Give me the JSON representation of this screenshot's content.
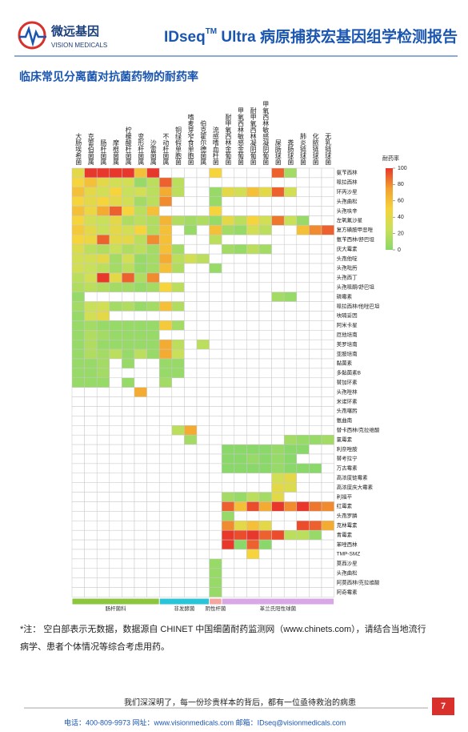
{
  "header": {
    "logo_cn": "微远基因",
    "logo_en": "VISION MEDICALS",
    "title_prefix": "IDseq",
    "title_sup": "TM",
    "title_rest": " Ultra 病原捕获宏基因组学检测报告"
  },
  "section_title": "临床常见分离菌对抗菌药物的耐药率",
  "chart_data": {
    "type": "heatmap",
    "columns": [
      "大肠埃希菌",
      "克雷伯菌属",
      "肠杆菌属",
      "摩根菌属",
      "柠檬酸杆菌属",
      "变形杆菌属",
      "沙雷菌属",
      "不动杆菌属",
      "铜绿假单胞菌",
      "嗜麦芽窄食单胞菌",
      "伯克霍尔德菌属",
      "流感嗜血杆菌",
      "耐甲氧西林金葡菌",
      "甲氧西林敏感金葡菌",
      "耐甲氧西林凝阴葡菌",
      "甲氧西林敏感凝阴葡菌",
      "屎肠球菌",
      "粪肠球菌",
      "肺炎链球菌",
      "化脓链球菌",
      "无乳链球菌"
    ],
    "rows": [
      "氨苄西林",
      "哌拉西林",
      "环丙沙星",
      "头孢曲松",
      "头孢呋辛",
      "左氧氟沙星",
      "复方磺胺甲恶唑",
      "氨苄西林/舒巴坦",
      "庆大霉素",
      "头孢他啶",
      "头孢吡肟",
      "头孢西丁",
      "头孢哌酮/舒巴坦",
      "磷霉素",
      "哌拉西林/他唑巴坦",
      "呋喃妥因",
      "阿米卡星",
      "厄他培南",
      "美罗培南",
      "亚胺培南",
      "黏菌素",
      "多黏菌素B",
      "替加环素",
      "头孢唑林",
      "米诺环素",
      "头孢噻肟",
      "氨曲南",
      "替卡西林/克拉维酸",
      "氯霉素",
      "利奈唑胺",
      "替考拉宁",
      "万古霉素",
      "高浓度链霉素",
      "高浓度庆大霉素",
      "利福平",
      "红霉素",
      "头孢罗膦",
      "克林霉素",
      "青霉素",
      "苯唑西林",
      "TMP-SMZ",
      "莫西沙星",
      "头孢曲松",
      "阿莫西林/克拉维酸",
      "阿奇霉素"
    ],
    "values": [
      [
        40,
        100,
        100,
        100,
        100,
        60,
        100,
        null,
        null,
        null,
        null,
        50,
        null,
        null,
        null,
        null,
        90,
        10,
        null,
        null,
        null
      ],
      [
        50,
        60,
        40,
        30,
        30,
        5,
        20,
        90,
        20,
        null,
        null,
        null,
        null,
        null,
        null,
        null,
        null,
        null,
        null,
        null,
        null
      ],
      [
        60,
        40,
        30,
        50,
        25,
        30,
        20,
        70,
        20,
        null,
        null,
        5,
        40,
        30,
        60,
        40,
        90,
        30,
        null,
        null,
        null
      ],
      [
        50,
        40,
        50,
        40,
        30,
        10,
        20,
        80,
        null,
        null,
        null,
        5,
        null,
        null,
        null,
        null,
        null,
        null,
        null,
        null,
        null
      ],
      [
        60,
        45,
        70,
        90,
        50,
        20,
        60,
        null,
        null,
        null,
        null,
        50,
        null,
        null,
        null,
        null,
        null,
        null,
        null,
        null,
        null
      ],
      [
        50,
        30,
        25,
        40,
        15,
        20,
        15,
        65,
        15,
        10,
        15,
        5,
        40,
        20,
        50,
        30,
        85,
        25,
        5,
        null,
        null
      ],
      [
        55,
        40,
        25,
        40,
        30,
        50,
        15,
        60,
        null,
        5,
        null,
        60,
        10,
        5,
        30,
        20,
        null,
        null,
        60,
        80,
        90
      ],
      [
        50,
        45,
        90,
        40,
        40,
        20,
        80,
        60,
        null,
        null,
        null,
        20,
        null,
        null,
        null,
        null,
        null,
        null,
        null,
        null,
        null
      ],
      [
        35,
        20,
        15,
        25,
        15,
        20,
        10,
        60,
        10,
        null,
        null,
        null,
        10,
        5,
        20,
        10,
        null,
        null,
        null,
        null,
        null
      ],
      [
        30,
        30,
        40,
        10,
        30,
        5,
        10,
        70,
        20,
        30,
        20,
        null,
        null,
        null,
        null,
        null,
        null,
        null,
        null,
        null,
        null
      ],
      [
        30,
        25,
        20,
        10,
        20,
        5,
        10,
        60,
        15,
        null,
        null,
        5,
        null,
        null,
        null,
        null,
        null,
        null,
        null,
        null,
        null
      ],
      [
        20,
        30,
        100,
        40,
        90,
        15,
        80,
        null,
        null,
        null,
        null,
        null,
        null,
        null,
        null,
        null,
        null,
        null,
        null,
        null,
        null
      ],
      [
        15,
        20,
        15,
        10,
        10,
        5,
        10,
        50,
        20,
        null,
        null,
        null,
        null,
        null,
        null,
        null,
        null,
        null,
        null,
        null,
        null
      ],
      [
        5,
        null,
        null,
        null,
        null,
        null,
        null,
        null,
        null,
        null,
        null,
        null,
        null,
        null,
        null,
        null,
        10,
        5,
        null,
        null,
        null
      ],
      [
        10,
        25,
        30,
        10,
        15,
        5,
        10,
        60,
        15,
        null,
        null,
        null,
        null,
        null,
        null,
        null,
        null,
        null,
        null,
        null,
        null
      ],
      [
        5,
        30,
        40,
        null,
        null,
        null,
        null,
        null,
        null,
        null,
        null,
        null,
        null,
        null,
        null,
        null,
        null,
        null,
        null,
        null,
        null
      ],
      [
        5,
        10,
        5,
        5,
        5,
        5,
        5,
        55,
        10,
        null,
        null,
        null,
        null,
        null,
        null,
        null,
        null,
        null,
        null,
        null,
        null
      ],
      [
        5,
        15,
        10,
        5,
        5,
        5,
        5,
        null,
        null,
        null,
        null,
        null,
        null,
        null,
        null,
        null,
        null,
        null,
        null,
        null,
        null
      ],
      [
        5,
        15,
        5,
        5,
        5,
        5,
        5,
        70,
        20,
        null,
        20,
        null,
        null,
        null,
        null,
        null,
        null,
        null,
        null,
        null,
        null
      ],
      [
        5,
        15,
        10,
        20,
        5,
        20,
        5,
        70,
        25,
        null,
        null,
        null,
        null,
        null,
        null,
        null,
        null,
        null,
        null,
        null,
        null
      ],
      [
        5,
        5,
        10,
        null,
        5,
        null,
        null,
        5,
        5,
        null,
        null,
        null,
        null,
        null,
        null,
        null,
        null,
        null,
        null,
        null,
        null
      ],
      [
        5,
        5,
        10,
        null,
        null,
        null,
        null,
        5,
        5,
        null,
        null,
        null,
        null,
        null,
        null,
        null,
        null,
        null,
        null,
        null,
        null
      ],
      [
        5,
        5,
        5,
        null,
        5,
        null,
        null,
        10,
        null,
        null,
        null,
        null,
        null,
        null,
        null,
        null,
        null,
        null,
        null,
        null,
        null
      ],
      [
        null,
        null,
        null,
        null,
        null,
        70,
        null,
        null,
        null,
        null,
        null,
        null,
        null,
        null,
        null,
        null,
        null,
        null,
        null,
        null,
        null
      ],
      [
        null,
        null,
        null,
        null,
        null,
        null,
        null,
        null,
        null,
        null,
        null,
        null,
        null,
        null,
        null,
        null,
        null,
        null,
        null,
        null,
        null
      ],
      [
        null,
        null,
        null,
        null,
        null,
        null,
        null,
        null,
        null,
        null,
        null,
        null,
        null,
        null,
        null,
        null,
        null,
        null,
        null,
        null,
        null
      ],
      [
        null,
        null,
        null,
        null,
        null,
        null,
        null,
        null,
        null,
        null,
        null,
        null,
        null,
        null,
        null,
        null,
        null,
        null,
        null,
        null,
        null
      ],
      [
        null,
        null,
        null,
        null,
        null,
        null,
        null,
        null,
        20,
        70,
        null,
        null,
        null,
        null,
        null,
        null,
        null,
        null,
        null,
        null,
        null
      ],
      [
        null,
        null,
        null,
        null,
        null,
        null,
        null,
        null,
        null,
        10,
        null,
        null,
        null,
        null,
        null,
        null,
        null,
        10,
        5,
        5,
        10
      ],
      [
        null,
        null,
        null,
        null,
        null,
        null,
        null,
        null,
        null,
        null,
        null,
        null,
        0,
        0,
        0,
        0,
        5,
        0,
        0,
        null,
        null
      ],
      [
        null,
        null,
        null,
        null,
        null,
        null,
        null,
        null,
        null,
        null,
        null,
        null,
        0,
        0,
        5,
        0,
        5,
        0,
        null,
        null,
        null
      ],
      [
        null,
        null,
        null,
        null,
        null,
        null,
        null,
        null,
        null,
        null,
        null,
        null,
        0,
        0,
        0,
        0,
        5,
        0,
        0,
        0,
        null
      ],
      [
        null,
        null,
        null,
        null,
        null,
        null,
        null,
        null,
        null,
        null,
        null,
        null,
        null,
        null,
        null,
        null,
        30,
        40,
        null,
        null,
        null
      ],
      [
        null,
        null,
        null,
        null,
        null,
        null,
        null,
        null,
        null,
        null,
        null,
        null,
        null,
        null,
        null,
        null,
        40,
        35,
        null,
        null,
        null
      ],
      [
        null,
        null,
        null,
        null,
        null,
        null,
        null,
        null,
        null,
        null,
        null,
        null,
        10,
        5,
        20,
        10,
        40,
        null,
        null,
        null,
        null
      ],
      [
        null,
        null,
        null,
        null,
        null,
        null,
        null,
        null,
        null,
        null,
        null,
        null,
        90,
        60,
        95,
        70,
        100,
        80,
        100,
        85,
        80
      ],
      [
        null,
        null,
        null,
        null,
        null,
        null,
        null,
        null,
        null,
        null,
        null,
        null,
        5,
        null,
        null,
        null,
        null,
        null,
        null,
        null,
        null
      ],
      [
        null,
        null,
        null,
        null,
        null,
        null,
        null,
        null,
        null,
        null,
        null,
        null,
        80,
        40,
        60,
        40,
        null,
        null,
        95,
        90,
        70
      ],
      [
        null,
        null,
        null,
        null,
        null,
        null,
        null,
        null,
        null,
        null,
        null,
        null,
        100,
        95,
        100,
        90,
        95,
        20,
        20,
        5,
        null
      ],
      [
        null,
        null,
        null,
        null,
        null,
        null,
        null,
        null,
        null,
        null,
        null,
        null,
        100,
        0,
        90,
        0,
        null,
        null,
        null,
        null,
        null
      ],
      [
        null,
        null,
        null,
        null,
        null,
        null,
        null,
        null,
        null,
        null,
        null,
        null,
        null,
        null,
        50,
        null,
        null,
        null,
        null,
        null,
        null
      ],
      [
        null,
        null,
        null,
        null,
        null,
        null,
        null,
        null,
        null,
        null,
        null,
        5,
        null,
        null,
        null,
        null,
        null,
        null,
        null,
        null,
        null
      ],
      [
        null,
        null,
        null,
        null,
        null,
        null,
        null,
        null,
        null,
        null,
        null,
        5,
        null,
        null,
        null,
        null,
        null,
        null,
        null,
        null,
        null
      ],
      [
        null,
        null,
        null,
        null,
        null,
        null,
        null,
        null,
        null,
        null,
        null,
        5,
        null,
        null,
        null,
        null,
        null,
        null,
        null,
        null,
        null
      ],
      [
        null,
        null,
        null,
        null,
        null,
        null,
        null,
        null,
        null,
        null,
        null,
        5,
        null,
        null,
        null,
        null,
        null,
        null,
        null,
        null,
        null
      ]
    ],
    "groups": [
      {
        "name": "肠杆菌科",
        "color": "#8cc63f",
        "columns": [
          "大肠埃希菌",
          "克雷伯菌属",
          "肠杆菌属",
          "摩根菌属",
          "柠檬酸杆菌属",
          "变形杆菌属",
          "沙雷菌属"
        ]
      },
      {
        "name": "非发酵菌",
        "color": "#29c4d8",
        "columns": [
          "不动杆菌属",
          "铜绿假单胞菌",
          "嗜麦芽窄食单胞菌",
          "伯克霍尔德菌属"
        ]
      },
      {
        "name": "阴性杆菌",
        "color": "#f4a6a0",
        "columns": [
          "流感嗜血杆菌"
        ]
      },
      {
        "name": "革兰氏阳性球菌",
        "color": "#d9a6e6",
        "columns": [
          "耐甲氧西林金葡菌",
          "甲氧西林敏感金葡菌",
          "耐甲氧西林凝阴葡菌",
          "甲氧西林敏感凝阴葡菌",
          "屎肠球菌",
          "粪肠球菌",
          "肺炎链球菌",
          "化脓链球菌",
          "无乳链球菌"
        ]
      }
    ],
    "colorbar_label": "耐药率",
    "clim": [
      0,
      100
    ],
    "cticks": [
      0,
      20,
      40,
      60,
      80,
      100
    ],
    "colormap": [
      "#8ad86a",
      "#c9e05a",
      "#f5d43c",
      "#f2a130",
      "#e8372b"
    ]
  },
  "note": [
    "*注：  空白部表示无数据，数据源自 CHINET 中国细菌耐药监测网（www.chinets.com），请结合当地流行",
    "病学、患者个体情况等综合考虑用药。"
  ],
  "footer": {
    "slogan": "我们深深明了，每一份珍贵样本的背后，都有一位亟待救治的病患",
    "page": "7",
    "contact": "电话：400-809-9973   网址：www.visionmedicals.com   邮箱：IDseq@visionmedicals.com"
  }
}
